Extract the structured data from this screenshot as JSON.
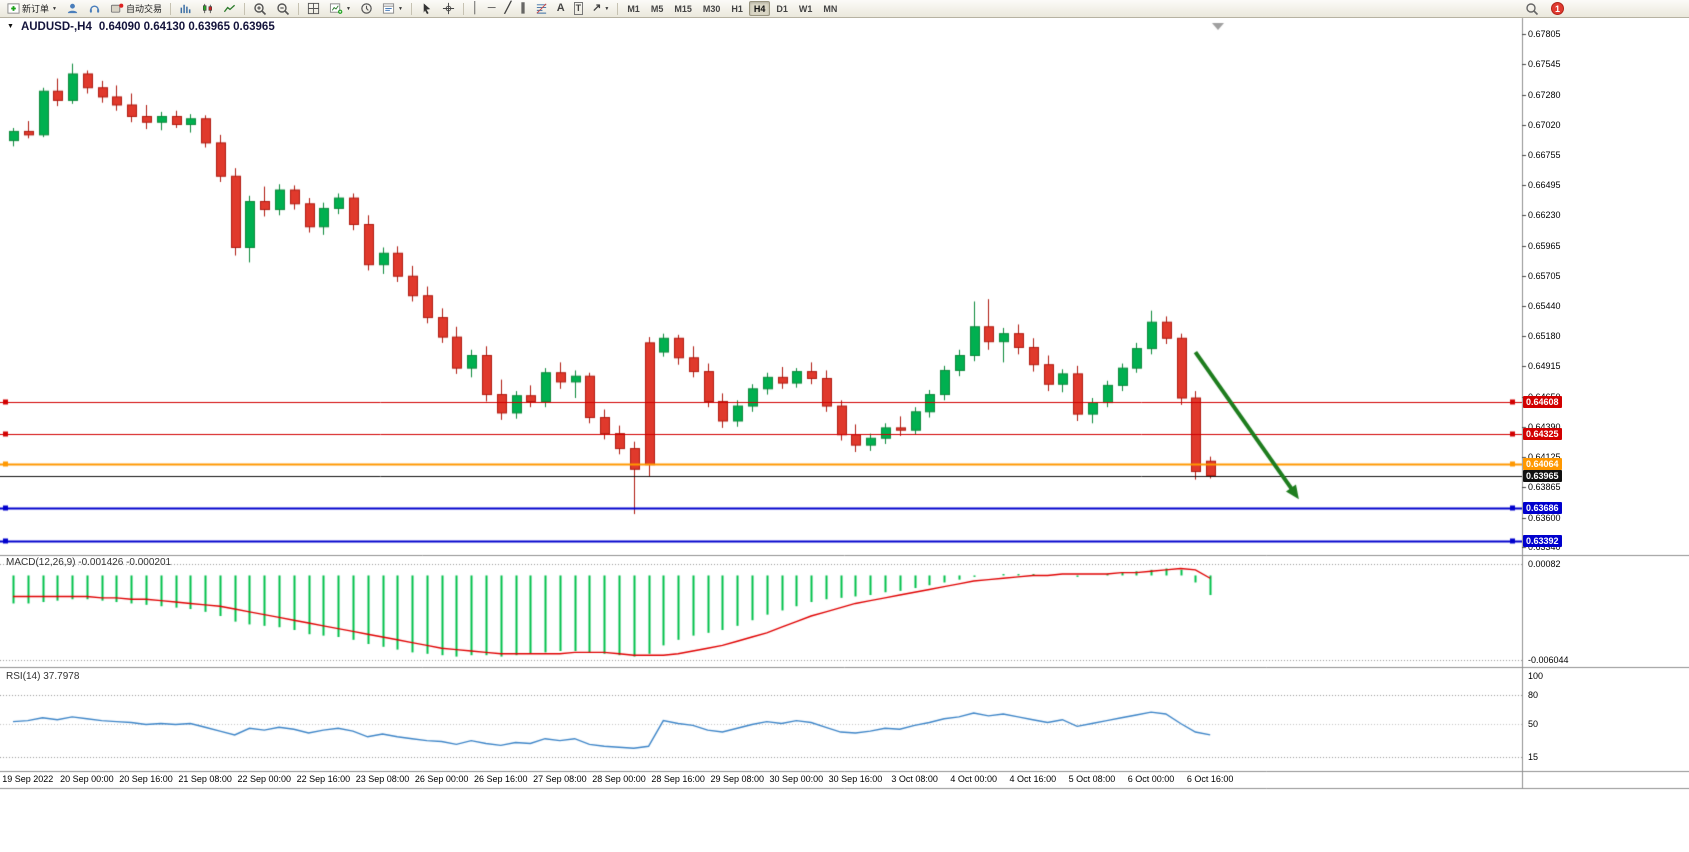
{
  "toolbar": {
    "new_order_label": "新订单",
    "autotrade_label": "自动交易",
    "timeframes": [
      "M1",
      "M5",
      "M15",
      "M30",
      "H1",
      "H4",
      "D1",
      "W1",
      "MN"
    ],
    "active_timeframe": "H4",
    "notification_count": "1"
  },
  "icons": {
    "dropdown": "▼",
    "collapse": "▼",
    "vertical_line": "│",
    "horizontal_line": "─",
    "trendline": "╱",
    "channel": "∥",
    "text_tool": "A",
    "label_tool": "T",
    "arrows_tool": "↗"
  },
  "chart": {
    "title": "AUDUSD-,H4",
    "ohlc_text": "0.64090 0.64130 0.63965 0.63965"
  },
  "colors": {
    "up": "#0d8a3c",
    "up_fill": "#00b050",
    "down": "#b01a10",
    "down_fill": "#e0392c",
    "macd_hist": "#00c04b",
    "macd_signal": "#e00000",
    "rsi_line": "#3d85c8",
    "arrow": "#1e7d1e",
    "line_red": "#d20000",
    "line_orange": "#ff9800",
    "line_blue": "#0000cd",
    "line_black": "#101010"
  },
  "chart_data": {
    "type": "candlestick",
    "symbol": "AUDUSD-",
    "timeframe": "H4",
    "ohlc_display": {
      "open": "0.64090",
      "high": "0.64130",
      "low": "0.63965",
      "close": "0.63965"
    },
    "price_axis_ticks": [
      "0.67805",
      "0.67545",
      "0.67280",
      "0.67020",
      "0.66755",
      "0.66495",
      "0.66230",
      "0.65965",
      "0.65705",
      "0.65440",
      "0.65180",
      "0.64915",
      "0.64650",
      "0.64390",
      "0.64125",
      "0.63865",
      "0.63600",
      "0.63340"
    ],
    "time_labels": [
      "19 Sep 2022",
      "20 Sep 00:00",
      "20 Sep 16:00",
      "21 Sep 08:00",
      "22 Sep 00:00",
      "22 Sep 16:00",
      "23 Sep 08:00",
      "26 Sep 00:00",
      "26 Sep 16:00",
      "27 Sep 08:00",
      "28 Sep 00:00",
      "28 Sep 16:00",
      "29 Sep 08:00",
      "30 Sep 00:00",
      "30 Sep 16:00",
      "3 Oct 08:00",
      "4 Oct 00:00",
      "4 Oct 16:00",
      "5 Oct 08:00",
      "6 Oct 00:00",
      "6 Oct 16:00"
    ],
    "time_label_indices": [
      1,
      5,
      9,
      13,
      17,
      21,
      25,
      29,
      33,
      37,
      41,
      45,
      49,
      53,
      57,
      61,
      65,
      69,
      73,
      77,
      81
    ],
    "candles": [
      [
        0.6688,
        0.6699,
        0.6683,
        0.6696
      ],
      [
        0.6696,
        0.6705,
        0.669,
        0.6693
      ],
      [
        0.6693,
        0.6734,
        0.6691,
        0.6731
      ],
      [
        0.6731,
        0.6742,
        0.6718,
        0.6723
      ],
      [
        0.6723,
        0.6755,
        0.672,
        0.6746
      ],
      [
        0.6746,
        0.6749,
        0.6729,
        0.6734
      ],
      [
        0.6734,
        0.674,
        0.6721,
        0.6726
      ],
      [
        0.6726,
        0.6736,
        0.6714,
        0.6719
      ],
      [
        0.6719,
        0.6729,
        0.6704,
        0.6709
      ],
      [
        0.6709,
        0.6719,
        0.6698,
        0.6704
      ],
      [
        0.6704,
        0.6713,
        0.6697,
        0.6709
      ],
      [
        0.6709,
        0.6714,
        0.6699,
        0.6702
      ],
      [
        0.6702,
        0.6711,
        0.6695,
        0.6707
      ],
      [
        0.6707,
        0.671,
        0.6682,
        0.6686
      ],
      [
        0.6686,
        0.6693,
        0.6652,
        0.6657
      ],
      [
        0.6657,
        0.6664,
        0.6588,
        0.6595
      ],
      [
        0.6595,
        0.664,
        0.6582,
        0.6635
      ],
      [
        0.6635,
        0.6648,
        0.6622,
        0.6628
      ],
      [
        0.6628,
        0.665,
        0.6623,
        0.6645
      ],
      [
        0.6645,
        0.6649,
        0.6628,
        0.6633
      ],
      [
        0.6633,
        0.6638,
        0.6608,
        0.6613
      ],
      [
        0.6613,
        0.6634,
        0.6606,
        0.6629
      ],
      [
        0.6629,
        0.6642,
        0.6624,
        0.6638
      ],
      [
        0.6638,
        0.6642,
        0.661,
        0.6615
      ],
      [
        0.6615,
        0.6623,
        0.6575,
        0.658
      ],
      [
        0.658,
        0.6595,
        0.6572,
        0.659
      ],
      [
        0.659,
        0.6596,
        0.6565,
        0.657
      ],
      [
        0.657,
        0.6579,
        0.6548,
        0.6553
      ],
      [
        0.6553,
        0.6561,
        0.6529,
        0.6534
      ],
      [
        0.6534,
        0.6542,
        0.6512,
        0.6517
      ],
      [
        0.6517,
        0.6526,
        0.6485,
        0.649
      ],
      [
        0.649,
        0.6506,
        0.6482,
        0.6501
      ],
      [
        0.6501,
        0.6509,
        0.6461,
        0.6467
      ],
      [
        0.6467,
        0.648,
        0.6445,
        0.6451
      ],
      [
        0.6451,
        0.647,
        0.6446,
        0.6466
      ],
      [
        0.6466,
        0.6475,
        0.6456,
        0.6461
      ],
      [
        0.6461,
        0.649,
        0.6456,
        0.6486
      ],
      [
        0.6486,
        0.6495,
        0.6472,
        0.6478
      ],
      [
        0.6478,
        0.6488,
        0.6464,
        0.6483
      ],
      [
        0.6483,
        0.6486,
        0.6442,
        0.6447
      ],
      [
        0.6447,
        0.6454,
        0.6428,
        0.6433
      ],
      [
        0.6433,
        0.644,
        0.6415,
        0.642
      ],
      [
        0.642,
        0.6426,
        0.6363,
        0.6402
      ],
      [
        0.6512,
        0.6517,
        0.6396,
        0.6406
      ],
      [
        0.6504,
        0.652,
        0.65,
        0.6516
      ],
      [
        0.6516,
        0.6519,
        0.6493,
        0.6499
      ],
      [
        0.6499,
        0.6509,
        0.6482,
        0.6487
      ],
      [
        0.6487,
        0.6494,
        0.6456,
        0.6461
      ],
      [
        0.6461,
        0.6468,
        0.6438,
        0.6444
      ],
      [
        0.6444,
        0.6462,
        0.6439,
        0.6457
      ],
      [
        0.6457,
        0.6476,
        0.6452,
        0.6472
      ],
      [
        0.6472,
        0.6486,
        0.6467,
        0.6482
      ],
      [
        0.6482,
        0.6491,
        0.6472,
        0.6477
      ],
      [
        0.6477,
        0.649,
        0.6473,
        0.6487
      ],
      [
        0.6487,
        0.6495,
        0.6476,
        0.6481
      ],
      [
        0.6481,
        0.6488,
        0.6452,
        0.6457
      ],
      [
        0.6457,
        0.6462,
        0.6427,
        0.6432
      ],
      [
        0.6432,
        0.6441,
        0.6417,
        0.6423
      ],
      [
        0.6423,
        0.6433,
        0.6418,
        0.6429
      ],
      [
        0.6429,
        0.6442,
        0.6424,
        0.6438
      ],
      [
        0.6438,
        0.6448,
        0.6431,
        0.6436
      ],
      [
        0.6436,
        0.6456,
        0.6432,
        0.6452
      ],
      [
        0.6452,
        0.6471,
        0.6447,
        0.6467
      ],
      [
        0.6467,
        0.6492,
        0.6462,
        0.6488
      ],
      [
        0.6488,
        0.6506,
        0.6483,
        0.6501
      ],
      [
        0.6501,
        0.6548,
        0.6496,
        0.6526
      ],
      [
        0.6526,
        0.655,
        0.6506,
        0.6513
      ],
      [
        0.6513,
        0.6525,
        0.6495,
        0.652
      ],
      [
        0.652,
        0.6528,
        0.6502,
        0.6508
      ],
      [
        0.6508,
        0.6516,
        0.6487,
        0.6493
      ],
      [
        0.6493,
        0.6501,
        0.647,
        0.6476
      ],
      [
        0.6476,
        0.6489,
        0.6469,
        0.6485
      ],
      [
        0.6485,
        0.6492,
        0.6444,
        0.645
      ],
      [
        0.645,
        0.6464,
        0.6442,
        0.646
      ],
      [
        0.646,
        0.6479,
        0.6456,
        0.6475
      ],
      [
        0.6475,
        0.6494,
        0.647,
        0.649
      ],
      [
        0.649,
        0.6512,
        0.6486,
        0.6507
      ],
      [
        0.6507,
        0.654,
        0.6502,
        0.653
      ],
      [
        0.653,
        0.6535,
        0.6511,
        0.6516
      ],
      [
        0.6516,
        0.652,
        0.6458,
        0.6464
      ],
      [
        0.6464,
        0.647,
        0.6393,
        0.64
      ],
      [
        0.6409,
        0.6413,
        0.6394,
        0.63965
      ]
    ],
    "hlines": [
      {
        "price": 0.64608,
        "label": "0.64608",
        "color_key": "line_red",
        "width": 1
      },
      {
        "price": 0.64325,
        "label": "0.64325",
        "color_key": "line_red",
        "width": 1
      },
      {
        "price": 0.64064,
        "label": "0.64064",
        "color_key": "line_orange",
        "width": 2
      },
      {
        "price": 0.63965,
        "label": "0.63965",
        "color_key": "line_black",
        "width": 1
      },
      {
        "price": 0.63686,
        "label": "0.63686",
        "color_key": "line_blue",
        "width": 2
      },
      {
        "price": 0.63392,
        "label": "0.63392",
        "color_key": "line_blue",
        "width": 2
      }
    ],
    "arrow_annotation": {
      "from_index": 80,
      "from_price": 0.6504,
      "to_index": 87,
      "to_price": 0.6376
    },
    "macd": {
      "label": "MACD(12,26,9)",
      "value_main": "-0.001426",
      "value_signal": "-0.000201",
      "axis_labels": [
        {
          "text": "0.00082",
          "value": 0.00082
        },
        {
          "text": "-0.006044",
          "value": -0.006044
        }
      ],
      "unit": 0.0001,
      "histogram_e4": [
        -20,
        -20,
        -19,
        -18,
        -17,
        -17,
        -18,
        -19,
        -20,
        -21,
        -22,
        -23,
        -24,
        -26,
        -29,
        -33,
        -35,
        -36,
        -37,
        -39,
        -42,
        -43,
        -44,
        -46,
        -49,
        -51,
        -53,
        -55,
        -56,
        -57,
        -58,
        -57,
        -57,
        -58,
        -57,
        -56,
        -55,
        -54,
        -54,
        -55,
        -56,
        -57,
        -58,
        -56,
        -50,
        -46,
        -43,
        -41,
        -39,
        -36,
        -32,
        -28,
        -25,
        -22,
        -19,
        -17,
        -16,
        -15,
        -14,
        -12,
        -11,
        -9,
        -7,
        -5,
        -3,
        -1,
        0,
        1,
        1,
        1,
        0,
        0,
        -1,
        0,
        1,
        2,
        3,
        4,
        5,
        4,
        -5,
        -14
      ],
      "signal_e4": [
        -15,
        -15,
        -15,
        -15,
        -15,
        -15,
        -16,
        -16,
        -17,
        -17,
        -18,
        -19,
        -20,
        -21,
        -22,
        -24,
        -26,
        -28,
        -30,
        -32,
        -34,
        -36,
        -38,
        -40,
        -42,
        -44,
        -46,
        -48,
        -50,
        -52,
        -53,
        -54,
        -55,
        -56,
        -56,
        -56,
        -56,
        -56,
        -55,
        -55,
        -55,
        -56,
        -57,
        -57,
        -57,
        -56,
        -54,
        -52,
        -50,
        -47,
        -44,
        -41,
        -37,
        -33,
        -29,
        -26,
        -23,
        -20,
        -18,
        -16,
        -14,
        -12,
        -10,
        -8,
        -6,
        -4,
        -3,
        -2,
        -1,
        0,
        0,
        1,
        1,
        1,
        1,
        2,
        2,
        3,
        4,
        5,
        4,
        -2
      ]
    },
    "rsi": {
      "label": "RSI(14)",
      "value": "37.7978",
      "axis_labels": [
        {
          "text": "100",
          "value": 100
        },
        {
          "text": "80",
          "value": 80
        },
        {
          "text": "50",
          "value": 50
        },
        {
          "text": "15",
          "value": 15
        }
      ],
      "levels": [
        80,
        50,
        15
      ],
      "values": [
        52,
        53,
        56,
        54,
        57,
        55,
        53,
        52,
        51,
        49,
        50,
        49,
        50,
        46,
        42,
        38,
        45,
        43,
        46,
        44,
        40,
        43,
        45,
        42,
        36,
        39,
        36,
        34,
        32,
        31,
        28,
        32,
        29,
        27,
        30,
        29,
        34,
        32,
        34,
        28,
        26,
        25,
        24,
        26,
        53,
        50,
        48,
        43,
        41,
        45,
        49,
        52,
        50,
        53,
        51,
        46,
        41,
        40,
        42,
        45,
        44,
        48,
        51,
        55,
        57,
        61,
        58,
        60,
        57,
        54,
        51,
        54,
        47,
        50,
        53,
        56,
        59,
        62,
        60,
        50,
        41,
        38
      ]
    }
  }
}
